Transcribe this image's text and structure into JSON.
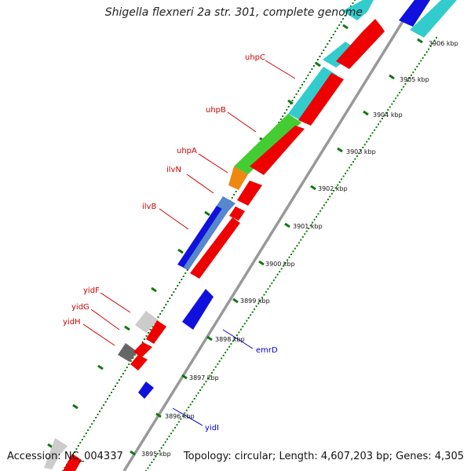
{
  "title": "Shigella flexneri 2a str. 301, complete genome",
  "accession": "Accession: NC_004337",
  "summary": "Topology: circular; Length: 4,607,203 bp; Genes: 4,305",
  "colors": {
    "reverse_track": "#ee0000",
    "cyan": "#33cccc",
    "green": "#44cc33",
    "orange": "#ee8811",
    "blue": "#1111dd",
    "steelblue": "#5588cc",
    "light_gray": "#cccccc",
    "dark_gray": "#666666",
    "label_red": "#cc0000",
    "label_blue": "#0000cc",
    "tick_green": "#117711",
    "backbone": "#999999"
  },
  "ticks": [
    {
      "label": "3895 kbp"
    },
    {
      "label": "3896 kbp"
    },
    {
      "label": "3897 kbp"
    },
    {
      "label": "3898 kbp"
    },
    {
      "label": "3899 kbp"
    },
    {
      "label": "3900 kbp"
    },
    {
      "label": "3901 kbp"
    },
    {
      "label": "3902 kbp"
    },
    {
      "label": "3903 kbp"
    },
    {
      "label": "3904 kbp"
    },
    {
      "label": "3905 kbp"
    },
    {
      "label": "3906 kbp"
    }
  ],
  "gene_labels": {
    "uhpC": "uhpC",
    "uhpB": "uhpB",
    "uhpA": "uhpA",
    "ilvN": "ilvN",
    "ilvB": "ilvB",
    "yidF": "yidF",
    "yidG": "yidG",
    "yidH": "yidH",
    "emrD": "emrD",
    "yidI": "yidI"
  }
}
